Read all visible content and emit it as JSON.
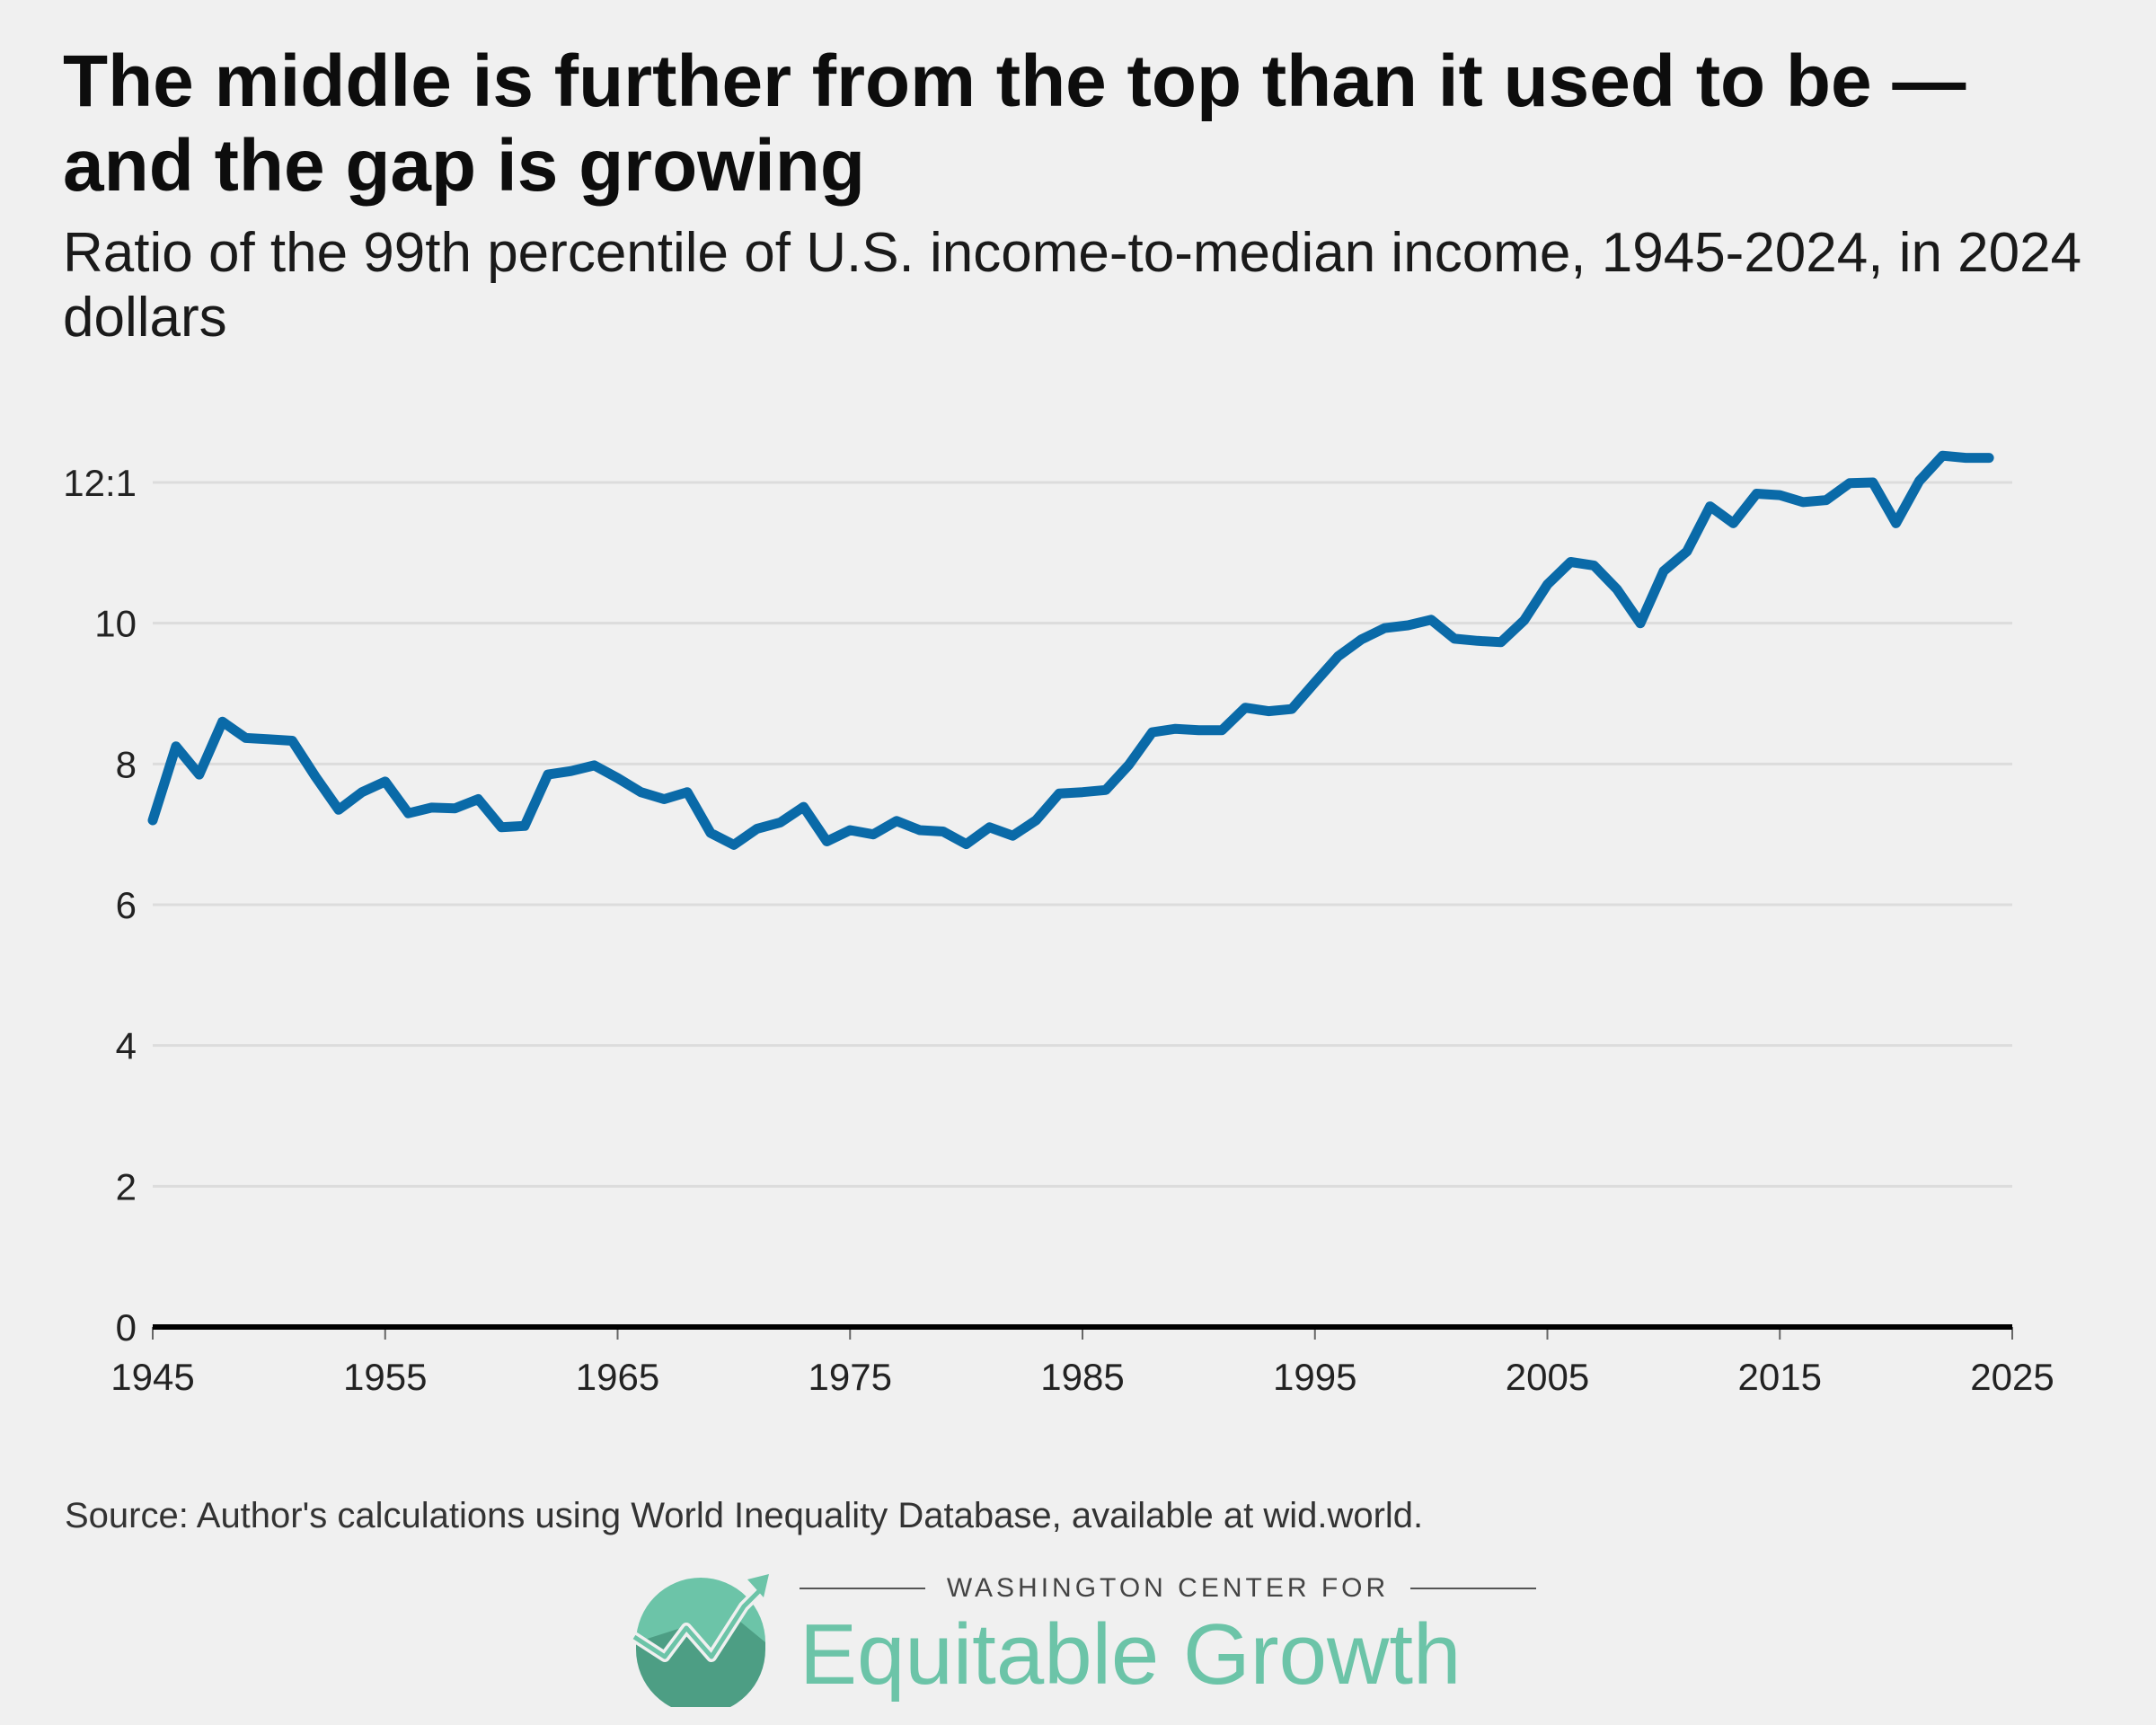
{
  "header": {
    "title": "The middle is further from the top than it used to be — and the gap is growing",
    "subtitle": "Ratio of the 99th percentile of U.S. income-to-median income, 1945-2024, in 2024 dollars"
  },
  "footer": {
    "source": "Source: Author's calculations using World Inequality Database, available at wid.world.",
    "brand_small": "WASHINGTON CENTER FOR",
    "brand_big": "Equitable Growth"
  },
  "colors": {
    "line": "#0a6aa8",
    "grid": "#dcdcdc",
    "baseline": "#000000",
    "brand": "#6cc4a8"
  },
  "chart_data": {
    "type": "line",
    "xlim": [
      1945,
      2025
    ],
    "ylim": [
      0,
      12
    ],
    "x_ticks": [
      1945,
      1955,
      1965,
      1975,
      1985,
      1995,
      2005,
      2015,
      2025
    ],
    "y_ticks": [
      {
        "value": 0,
        "label": "0"
      },
      {
        "value": 2,
        "label": "2"
      },
      {
        "value": 4,
        "label": "4"
      },
      {
        "value": 6,
        "label": "6"
      },
      {
        "value": 8,
        "label": "8"
      },
      {
        "value": 10,
        "label": "10"
      },
      {
        "value": 12,
        "label": "12:1"
      }
    ],
    "grid": "horizontal",
    "series": [
      {
        "x": [
          1945,
          1946,
          1947,
          1948,
          1949,
          1950,
          1951,
          1952,
          1953,
          1954,
          1955,
          1956,
          1957,
          1958,
          1959,
          1960,
          1961,
          1962,
          1963,
          1964,
          1965,
          1966,
          1967,
          1968,
          1969,
          1970,
          1971,
          1972,
          1973,
          1974,
          1975,
          1976,
          1977,
          1978,
          1979,
          1980,
          1981,
          1982,
          1983,
          1984,
          1985,
          1986,
          1987,
          1988,
          1989,
          1990,
          1991,
          1992,
          1993,
          1994,
          1995,
          1996,
          1997,
          1998,
          1999,
          2000,
          2001,
          2002,
          2003,
          2004,
          2005,
          2006,
          2007,
          2008,
          2009,
          2010,
          2011,
          2012,
          2013,
          2014,
          2015,
          2016,
          2017,
          2018,
          2019,
          2020,
          2021,
          2022,
          2023,
          2024
        ],
        "y": [
          7.2,
          8.25,
          7.85,
          8.6,
          8.37,
          8.35,
          8.33,
          7.82,
          7.35,
          7.6,
          7.75,
          7.3,
          7.38,
          7.37,
          7.5,
          7.1,
          7.12,
          7.85,
          7.9,
          7.98,
          7.8,
          7.6,
          7.5,
          7.6,
          7.02,
          6.85,
          7.08,
          7.17,
          7.39,
          6.9,
          7.06,
          7.0,
          7.19,
          7.06,
          7.04,
          6.86,
          7.1,
          6.98,
          7.2,
          7.58,
          7.6,
          7.63,
          7.99,
          8.45,
          8.5,
          8.48,
          8.48,
          8.8,
          8.75,
          8.78,
          9.16,
          9.53,
          9.77,
          9.93,
          9.97,
          10.05,
          9.78,
          9.75,
          9.73,
          10.04,
          10.55,
          10.87,
          10.82,
          10.48,
          10.0,
          10.74,
          11.02,
          11.66,
          11.42,
          11.84,
          11.82,
          11.72,
          11.75,
          11.99,
          12.0,
          11.42,
          12.02,
          12.38,
          12.35,
          12.35
        ]
      }
    ]
  }
}
